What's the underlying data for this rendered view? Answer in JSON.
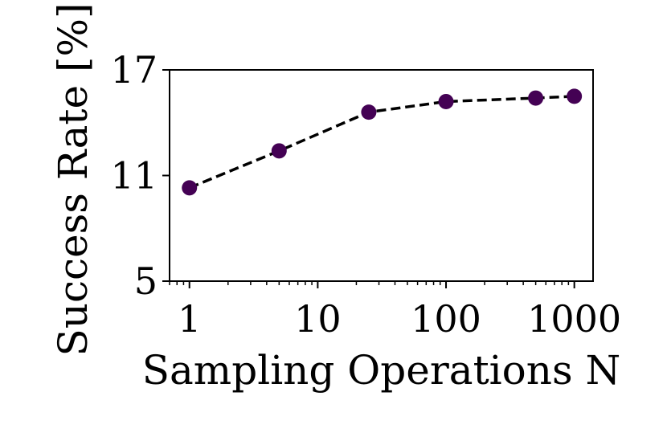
{
  "chart_data": {
    "type": "line",
    "title": "",
    "xlabel": "Sampling Operations N",
    "ylabel": "Success Rate [%]",
    "xscale": "log",
    "xlim": [
      0.7,
      1400
    ],
    "ylim": [
      5,
      17
    ],
    "xticks": [
      1,
      10,
      100,
      1000
    ],
    "xtick_labels": [
      "1",
      "10",
      "100",
      "1000"
    ],
    "yticks": [
      5,
      11,
      17
    ],
    "ytick_labels": [
      "5",
      "11",
      "17"
    ],
    "grid": false,
    "legend": "none",
    "series": [
      {
        "x": [
          1,
          5,
          25,
          100,
          500,
          1000
        ],
        "y": [
          10.3,
          12.4,
          14.6,
          15.2,
          15.4,
          15.5
        ],
        "color": "#440154",
        "line_style": "dashed",
        "line_color": "#000000",
        "marker": "circle"
      }
    ]
  }
}
